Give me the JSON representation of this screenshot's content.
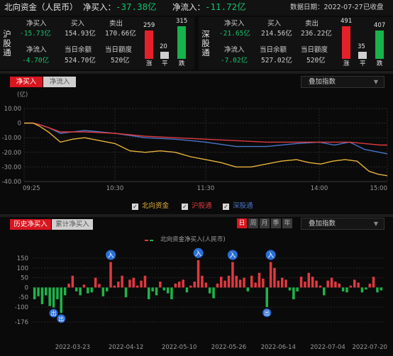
{
  "header": {
    "title": "北向资金（人民币）",
    "net_buy_label": "净买入：",
    "net_buy_value": "-37.38亿",
    "net_inflow_label": "净流入：",
    "net_inflow_value": "-11.72亿",
    "date_text": "数据日期：2022-07-27",
    "status": "已收盘"
  },
  "sh": {
    "label": "沪股通",
    "net_buy_label": "净买入",
    "net_buy": "-15.73亿",
    "buy_label": "买入",
    "buy": "154.93亿",
    "sell_label": "卖出",
    "sell": "170.66亿",
    "net_inflow_label": "净流入",
    "net_inflow": "-4.70亿",
    "balance_label": "当日余额",
    "balance": "524.70亿",
    "quota_label": "当日额度",
    "quota": "520亿",
    "up": 259,
    "flat": 20,
    "down": 315,
    "up_label": "涨",
    "flat_label": "平",
    "down_label": "跌"
  },
  "sz": {
    "label": "深股通",
    "net_buy_label": "净买入",
    "net_buy": "-21.65亿",
    "buy_label": "买入",
    "buy": "214.56亿",
    "sell_label": "卖出",
    "sell": "236.22亿",
    "net_inflow_label": "净流入",
    "net_inflow": "-7.02亿",
    "balance_label": "当日余额",
    "balance": "527.02亿",
    "quota_label": "当日额度",
    "quota": "520亿",
    "up": 491,
    "flat": 35,
    "down": 407,
    "up_label": "涨",
    "flat_label": "平",
    "down_label": "跌"
  },
  "intraday": {
    "tabs": [
      "净买入",
      "净流入"
    ],
    "active_tab": 0,
    "overlay_dropdown": "叠加指数",
    "unit": "(亿)",
    "legend": [
      "北向资金",
      "沪股通",
      "深股通"
    ],
    "colors": {
      "north": "#e8b23a",
      "sh": "#e0393f",
      "sz": "#4a74c9"
    }
  },
  "history": {
    "tabs": [
      "历史净买入",
      "累计净买入"
    ],
    "active_tab": 0,
    "periods": [
      "日",
      "周",
      "月",
      "季",
      "年"
    ],
    "active_period": 0,
    "overlay_dropdown": "叠加指数",
    "legend": "北向资金净买入(人民币)",
    "in_marker": "入",
    "out_marker": "出",
    "colors": {
      "pos": "#e0393f",
      "neg": "#1fb34a"
    }
  },
  "chart_data": [
    {
      "type": "line",
      "title": "",
      "ylabel": "(亿)",
      "ylim": [
        -40,
        10
      ],
      "yticks": [
        "10.00",
        "0",
        "-10.00",
        "-20.00",
        "-30.00",
        "-40.00"
      ],
      "xticks": [
        "09:25",
        "10:30",
        "11:30",
        "14:00",
        "15:00"
      ],
      "series": [
        {
          "name": "北向资金",
          "points": [
            [
              0,
              0
            ],
            [
              6,
              0
            ],
            [
              10,
              -2
            ],
            [
              16,
              -6
            ],
            [
              24,
              -13
            ],
            [
              32,
              -11
            ],
            [
              40,
              -10
            ],
            [
              50,
              -12
            ],
            [
              60,
              -14
            ],
            [
              70,
              -19
            ],
            [
              80,
              -20
            ],
            [
              90,
              -19
            ],
            [
              100,
              -20
            ],
            [
              110,
              -23
            ],
            [
              120,
              -25
            ],
            [
              130,
              -27
            ],
            [
              140,
              -30
            ],
            [
              150,
              -30
            ],
            [
              160,
              -28
            ],
            [
              170,
              -26
            ],
            [
              180,
              -25
            ],
            [
              188,
              -27
            ],
            [
              196,
              -28
            ],
            [
              204,
              -26
            ],
            [
              212,
              -25
            ],
            [
              220,
              -26
            ],
            [
              228,
              -33
            ],
            [
              234,
              -35
            ],
            [
              240,
              -36
            ]
          ]
        },
        {
          "name": "沪股通",
          "points": [
            [
              0,
              0
            ],
            [
              6,
              0
            ],
            [
              10,
              -1
            ],
            [
              16,
              -3
            ],
            [
              24,
              -6
            ],
            [
              40,
              -6
            ],
            [
              60,
              -7
            ],
            [
              80,
              -9
            ],
            [
              100,
              -10
            ],
            [
              120,
              -11
            ],
            [
              140,
              -12
            ],
            [
              160,
              -13
            ],
            [
              180,
              -13
            ],
            [
              200,
              -13
            ],
            [
              215,
              -13
            ],
            [
              225,
              -14
            ],
            [
              235,
              -15
            ],
            [
              240,
              -15
            ]
          ]
        },
        {
          "name": "深股通",
          "points": [
            [
              0,
              0
            ],
            [
              6,
              0
            ],
            [
              10,
              -1
            ],
            [
              16,
              -3
            ],
            [
              24,
              -7
            ],
            [
              40,
              -5
            ],
            [
              60,
              -7
            ],
            [
              80,
              -10
            ],
            [
              100,
              -11
            ],
            [
              120,
              -13
            ],
            [
              140,
              -16
            ],
            [
              160,
              -16
            ],
            [
              180,
              -14
            ],
            [
              195,
              -13
            ],
            [
              205,
              -15
            ],
            [
              215,
              -13
            ],
            [
              225,
              -18
            ],
            [
              235,
              -20
            ],
            [
              240,
              -21
            ]
          ]
        }
      ]
    },
    {
      "type": "bar",
      "title": "",
      "legend": "北向资金净买入(人民币)",
      "ylim": [
        -176,
        150
      ],
      "yticks": [
        "150",
        "100",
        "50",
        "0",
        "-50",
        "-100",
        "-176"
      ],
      "xticks": [
        "2022-03-23",
        "2022-04-12",
        "2022-05-10",
        "2022-05-26",
        "2022-06-14",
        "2022-07-04",
        "2022-07-20"
      ],
      "values": [
        -60,
        -45,
        -85,
        -40,
        -95,
        -102,
        -60,
        -130,
        -40,
        20,
        60,
        -20,
        -40,
        15,
        -30,
        -25,
        50,
        18,
        -45,
        -20,
        130,
        10,
        30,
        60,
        -50,
        40,
        50,
        10,
        35,
        60,
        -60,
        -20,
        -40,
        30,
        -15,
        -30,
        -60,
        20,
        30,
        40,
        -25,
        10,
        30,
        140,
        60,
        25,
        -30,
        -55,
        20,
        55,
        35,
        60,
        130,
        60,
        40,
        50,
        -20,
        60,
        25,
        75,
        45,
        -100,
        130,
        100,
        35,
        50,
        40,
        -15,
        -60,
        -20,
        55,
        30,
        75,
        55,
        35,
        10,
        -40,
        35,
        50,
        30,
        20,
        -20,
        -25,
        10,
        40,
        25,
        -25,
        -10,
        20,
        55,
        -25,
        -15
      ]
    }
  ]
}
